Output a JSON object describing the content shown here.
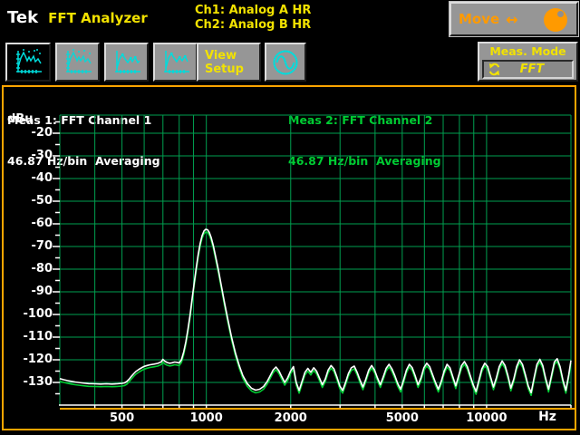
{
  "header": {
    "logo": "Tek",
    "title": "FFT Analyzer",
    "channel_info": {
      "line1": "Ch1: Analog A HR",
      "line2": "Ch2: Analog B HR"
    },
    "move_button": {
      "label": "Move",
      "arrow": "↔"
    }
  },
  "toolbar": {
    "view_buttons": [
      {
        "name": "view-single-spectrum",
        "selected": true
      },
      {
        "name": "view-dual-spectrum",
        "selected": false
      },
      {
        "name": "view-spectrum-markers-a",
        "selected": false
      },
      {
        "name": "view-spectrum-markers-b",
        "selected": false
      }
    ],
    "view_setup": {
      "line1": "View",
      "line2": "Setup"
    },
    "signal_button": {
      "name": "sine-source"
    },
    "meas_mode": {
      "label": "Meas. Mode",
      "value": "FFT"
    }
  },
  "display": {
    "meas1": {
      "title": "Meas 1: FFT Channel 1",
      "subtitle": "46.87 Hz/bin  Averaging"
    },
    "meas2": {
      "title": "Meas 2: FFT Channel 2",
      "subtitle": "46.87 Hz/bin  Averaging"
    },
    "y_unit": "dBu",
    "x_unit": "Hz"
  },
  "colors": {
    "grid": "#00a050",
    "trace1": "#ffffff",
    "trace2": "#00cc33",
    "frame": "#ffa500",
    "accent_yellow": "#f2e200",
    "accent_cyan": "#00dcdc",
    "accent_orange": "#ff9a00",
    "button_face": "#969696",
    "background": "#000000"
  },
  "chart_data": {
    "type": "line",
    "x_scale": "log",
    "x_range_hz": [
      300,
      20000
    ],
    "y_range_dbu": [
      -140,
      -12
    ],
    "y_gridlines": [
      -20,
      -30,
      -40,
      -50,
      -60,
      -70,
      -80,
      -90,
      -100,
      -110,
      -120,
      -130
    ],
    "x_gridlines_hz": [
      400,
      500,
      600,
      700,
      800,
      900,
      1000,
      2000,
      3000,
      4000,
      5000,
      6000,
      7000,
      8000,
      9000,
      10000,
      20000
    ],
    "y_tick_labels": [
      "-20",
      "-30",
      "-40",
      "-50",
      "-60",
      "-70",
      "-80",
      "-90",
      "-100",
      "-110",
      "-120",
      "-130"
    ],
    "x_tick_labels": [
      [
        500,
        "500"
      ],
      [
        1000,
        "1000"
      ],
      [
        2000,
        "2000"
      ],
      [
        5000,
        "5000"
      ],
      [
        10000,
        "10000"
      ]
    ],
    "ylabel": "dBu",
    "xlabel": "Hz",
    "legend_position": "none",
    "grid": true,
    "series": [
      {
        "name": "Meas 1: FFT Channel 1",
        "color": "#ffffff",
        "points": [
          [
            300,
            -128.3
          ],
          [
            310,
            -128.8
          ],
          [
            320,
            -129.2
          ],
          [
            330,
            -129.5
          ],
          [
            340,
            -129.8
          ],
          [
            360,
            -130.2
          ],
          [
            380,
            -130.5
          ],
          [
            400,
            -130.6
          ],
          [
            420,
            -130.7
          ],
          [
            440,
            -130.6
          ],
          [
            460,
            -130.7
          ],
          [
            480,
            -130.6
          ],
          [
            500,
            -130.4
          ],
          [
            510,
            -130.2
          ],
          [
            520,
            -129.6
          ],
          [
            530,
            -128.6
          ],
          [
            540,
            -127.3
          ],
          [
            550,
            -126.2
          ],
          [
            560,
            -125.2
          ],
          [
            575,
            -124.2
          ],
          [
            590,
            -123.4
          ],
          [
            600,
            -122.9
          ],
          [
            615,
            -122.5
          ],
          [
            630,
            -122.2
          ],
          [
            650,
            -121.9
          ],
          [
            670,
            -121.6
          ],
          [
            690,
            -120.9
          ],
          [
            700,
            -119.8
          ],
          [
            710,
            -120.6
          ],
          [
            725,
            -121.2
          ],
          [
            740,
            -121.5
          ],
          [
            755,
            -121.3
          ],
          [
            770,
            -121.0
          ],
          [
            785,
            -121.1
          ],
          [
            800,
            -121.4
          ],
          [
            815,
            -120.0
          ],
          [
            830,
            -116.5
          ],
          [
            845,
            -112.0
          ],
          [
            860,
            -106.5
          ],
          [
            875,
            -100.0
          ],
          [
            890,
            -93.0
          ],
          [
            905,
            -86.0
          ],
          [
            920,
            -79.5
          ],
          [
            935,
            -73.5
          ],
          [
            950,
            -68.8
          ],
          [
            965,
            -65.3
          ],
          [
            980,
            -63.2
          ],
          [
            995,
            -62.4
          ],
          [
            1010,
            -62.6
          ],
          [
            1025,
            -63.8
          ],
          [
            1040,
            -66.0
          ],
          [
            1060,
            -69.8
          ],
          [
            1080,
            -74.5
          ],
          [
            1105,
            -80.5
          ],
          [
            1130,
            -87.0
          ],
          [
            1160,
            -94.5
          ],
          [
            1195,
            -102.5
          ],
          [
            1230,
            -110.0
          ],
          [
            1270,
            -117.0
          ],
          [
            1310,
            -122.5
          ],
          [
            1350,
            -127.0
          ],
          [
            1400,
            -130.5
          ],
          [
            1450,
            -132.6
          ],
          [
            1500,
            -133.4
          ],
          [
            1550,
            -133.0
          ],
          [
            1600,
            -131.8
          ],
          [
            1650,
            -129.5
          ],
          [
            1690,
            -127.0
          ],
          [
            1731,
            -124.5
          ],
          [
            1772,
            -123.2
          ],
          [
            1815,
            -124.8
          ],
          [
            1859,
            -127.5
          ],
          [
            1904,
            -130.0
          ],
          [
            1950,
            -128.0
          ],
          [
            1997,
            -125.0
          ],
          [
            2045,
            -123.0
          ],
          [
            2094,
            -130.0
          ],
          [
            2144,
            -133.5
          ],
          [
            2196,
            -129.5
          ],
          [
            2249,
            -125.5
          ],
          [
            2303,
            -123.8
          ],
          [
            2359,
            -125.5
          ],
          [
            2416,
            -123.5
          ],
          [
            2474,
            -125.0
          ],
          [
            2533,
            -128.0
          ],
          [
            2594,
            -131.0
          ],
          [
            2657,
            -128.5
          ],
          [
            2721,
            -124.5
          ],
          [
            2787,
            -122.5
          ],
          [
            2854,
            -124.0
          ],
          [
            2923,
            -127.5
          ],
          [
            2993,
            -131.5
          ],
          [
            3065,
            -133.5
          ],
          [
            3139,
            -130.0
          ],
          [
            3215,
            -126.0
          ],
          [
            3292,
            -123.5
          ],
          [
            3372,
            -122.8
          ],
          [
            3453,
            -125.5
          ],
          [
            3536,
            -129.0
          ],
          [
            3621,
            -132.0
          ],
          [
            3709,
            -128.5
          ],
          [
            3798,
            -124.5
          ],
          [
            3890,
            -122.5
          ],
          [
            3984,
            -124.5
          ],
          [
            4080,
            -128.0
          ],
          [
            4178,
            -131.0
          ],
          [
            4279,
            -127.5
          ],
          [
            4382,
            -123.8
          ],
          [
            4488,
            -122.0
          ],
          [
            4596,
            -124.0
          ],
          [
            4707,
            -127.0
          ],
          [
            4820,
            -130.5
          ],
          [
            4936,
            -133.0
          ],
          [
            5055,
            -129.0
          ],
          [
            5177,
            -124.5
          ],
          [
            5302,
            -122.0
          ],
          [
            5430,
            -123.5
          ],
          [
            5561,
            -127.0
          ],
          [
            5695,
            -131.0
          ],
          [
            5832,
            -128.0
          ],
          [
            5973,
            -123.5
          ],
          [
            6117,
            -121.5
          ],
          [
            6264,
            -123.0
          ],
          [
            6415,
            -126.5
          ],
          [
            6570,
            -130.0
          ],
          [
            6728,
            -133.0
          ],
          [
            6890,
            -129.5
          ],
          [
            7056,
            -125.0
          ],
          [
            7226,
            -122.0
          ],
          [
            7400,
            -123.5
          ],
          [
            7578,
            -127.5
          ],
          [
            7761,
            -131.5
          ],
          [
            7948,
            -127.0
          ],
          [
            8139,
            -122.5
          ],
          [
            8336,
            -120.8
          ],
          [
            8537,
            -123.0
          ],
          [
            8743,
            -127.0
          ],
          [
            8954,
            -131.0
          ],
          [
            9170,
            -134.0
          ],
          [
            9391,
            -129.0
          ],
          [
            9617,
            -124.0
          ],
          [
            9849,
            -121.5
          ],
          [
            10086,
            -123.0
          ],
          [
            10329,
            -127.5
          ],
          [
            10578,
            -132.0
          ],
          [
            10833,
            -128.0
          ],
          [
            11094,
            -123.0
          ],
          [
            11362,
            -120.5
          ],
          [
            11636,
            -122.5
          ],
          [
            11916,
            -127.0
          ],
          [
            12203,
            -132.5
          ],
          [
            12498,
            -128.5
          ],
          [
            12799,
            -123.0
          ],
          [
            13108,
            -120.0
          ],
          [
            13424,
            -122.0
          ],
          [
            13748,
            -126.5
          ],
          [
            14079,
            -131.5
          ],
          [
            14419,
            -134.5
          ],
          [
            14766,
            -128.0
          ],
          [
            15122,
            -122.0
          ],
          [
            15487,
            -119.8
          ],
          [
            15860,
            -122.5
          ],
          [
            16242,
            -128.0
          ],
          [
            16634,
            -133.0
          ],
          [
            17035,
            -127.0
          ],
          [
            17446,
            -121.0
          ],
          [
            17866,
            -119.5
          ],
          [
            18297,
            -123.0
          ],
          [
            18738,
            -129.0
          ],
          [
            19190,
            -133.5
          ],
          [
            19652,
            -126.5
          ],
          [
            20000,
            -120.3
          ]
        ]
      },
      {
        "name": "Meas 2: FFT Channel 2",
        "color": "#00cc33",
        "same_shape_as": "Meas 1: FFT Channel 1",
        "offset_db": -1.2
      }
    ]
  }
}
